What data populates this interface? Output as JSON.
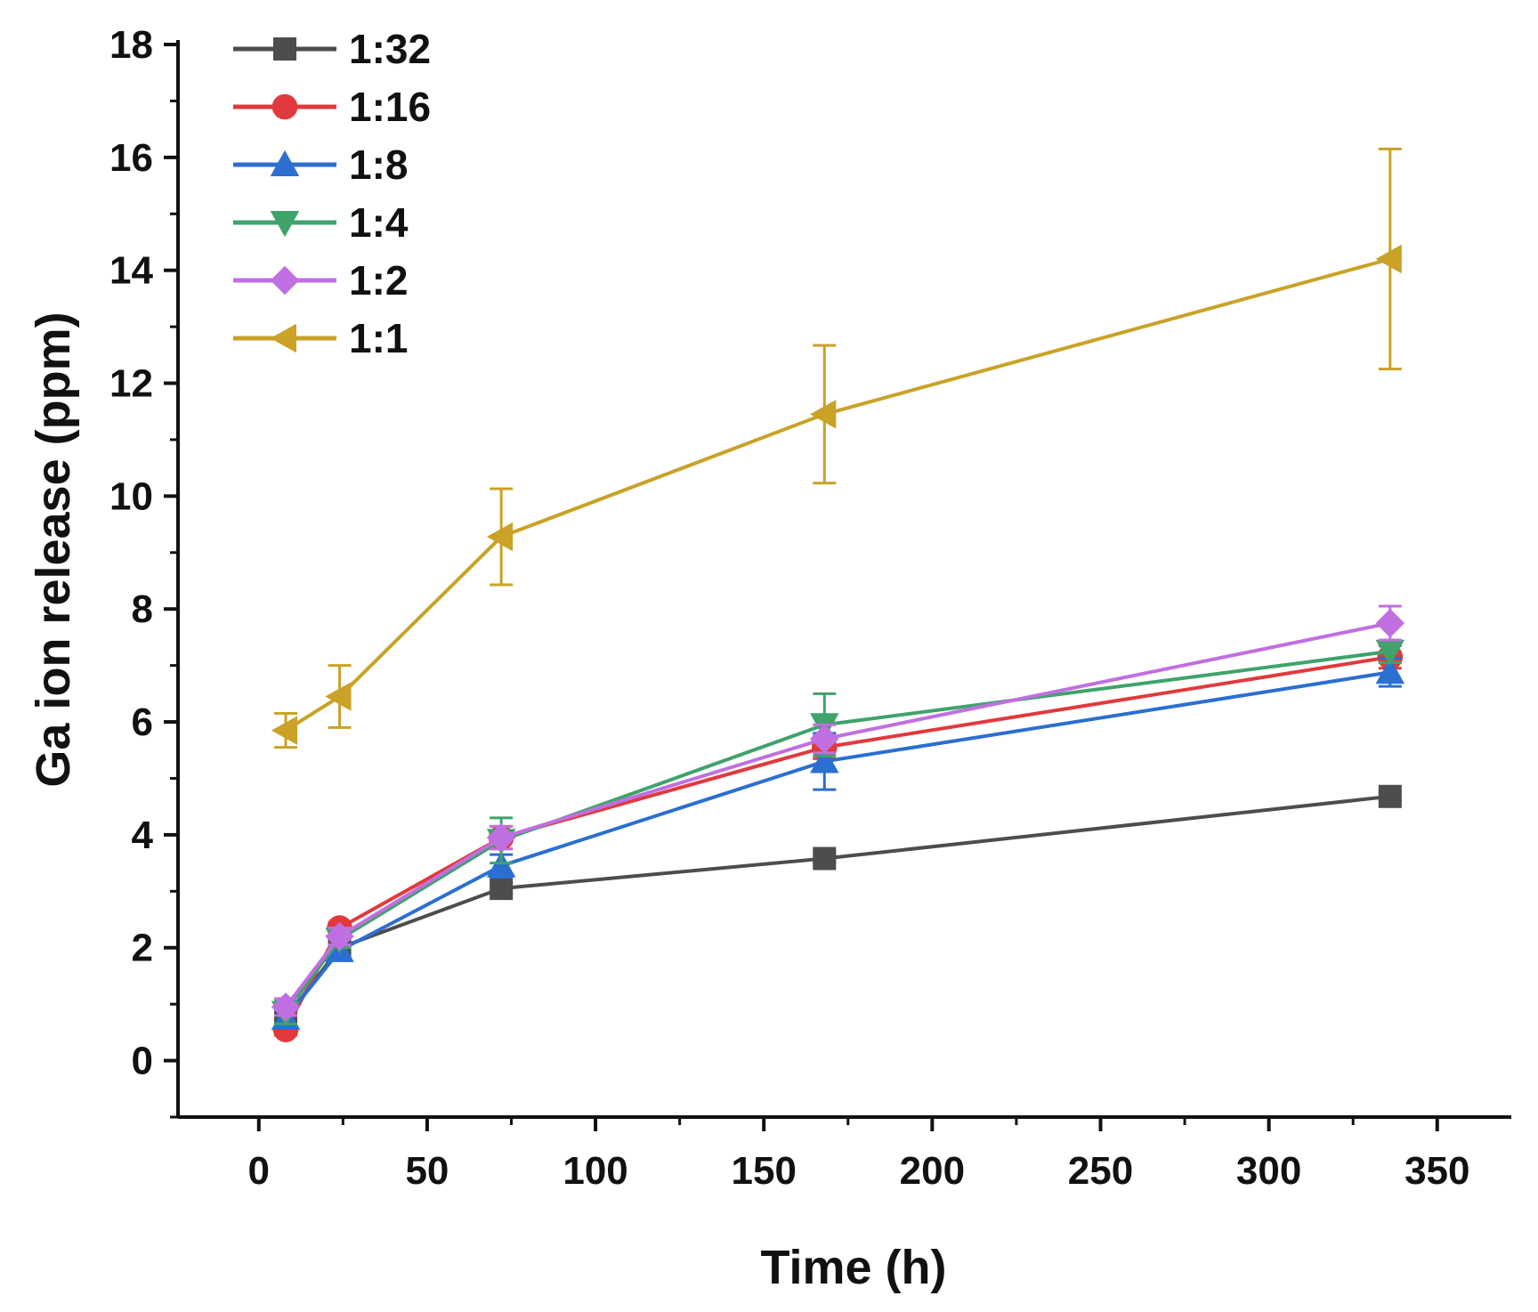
{
  "chart_data": {
    "type": "line",
    "title": "",
    "xlabel": "Time (h)",
    "ylabel": "Ga ion release (ppm)",
    "xlim": [
      -24,
      372
    ],
    "ylim": [
      -1,
      18
    ],
    "xticks": [
      0,
      50,
      100,
      150,
      200,
      250,
      300,
      350
    ],
    "yticks": [
      0,
      2,
      4,
      6,
      8,
      10,
      12,
      14,
      16,
      18
    ],
    "grid": false,
    "legend_position": "top-left",
    "x": [
      8,
      24,
      72,
      168,
      336
    ],
    "series": [
      {
        "name": "1:32",
        "color": "#4d4d4d",
        "marker": "square",
        "values": [
          0.75,
          2.0,
          3.05,
          3.58,
          4.68
        ],
        "errors": [
          0.08,
          0.1,
          0.1,
          0.08,
          0.08
        ]
      },
      {
        "name": "1:16",
        "color": "#e03a3e",
        "marker": "circle",
        "values": [
          0.55,
          2.35,
          3.95,
          5.55,
          7.15
        ],
        "errors": [
          0.1,
          0.1,
          0.2,
          0.2,
          0.2
        ]
      },
      {
        "name": "1:8",
        "color": "#2b6fd0",
        "marker": "triangle-up",
        "values": [
          0.75,
          1.95,
          3.45,
          5.3,
          6.88
        ],
        "errors": [
          0.15,
          0.1,
          0.2,
          0.5,
          0.25
        ]
      },
      {
        "name": "1:4",
        "color": "#3fa36b",
        "marker": "triangle-down",
        "values": [
          0.85,
          2.15,
          3.9,
          5.95,
          7.25
        ],
        "errors": [
          0.2,
          0.15,
          0.4,
          0.55,
          0.2
        ]
      },
      {
        "name": "1:2",
        "color": "#c06fe0",
        "marker": "diamond",
        "values": [
          0.95,
          2.2,
          3.95,
          5.7,
          7.75
        ],
        "errors": [
          0.15,
          0.15,
          0.2,
          0.25,
          0.3
        ]
      },
      {
        "name": "1:1",
        "color": "#c9a227",
        "marker": "triangle-left",
        "values": [
          5.85,
          6.45,
          9.28,
          11.45,
          14.2
        ],
        "errors": [
          0.3,
          0.55,
          0.85,
          1.22,
          1.95
        ]
      }
    ]
  }
}
